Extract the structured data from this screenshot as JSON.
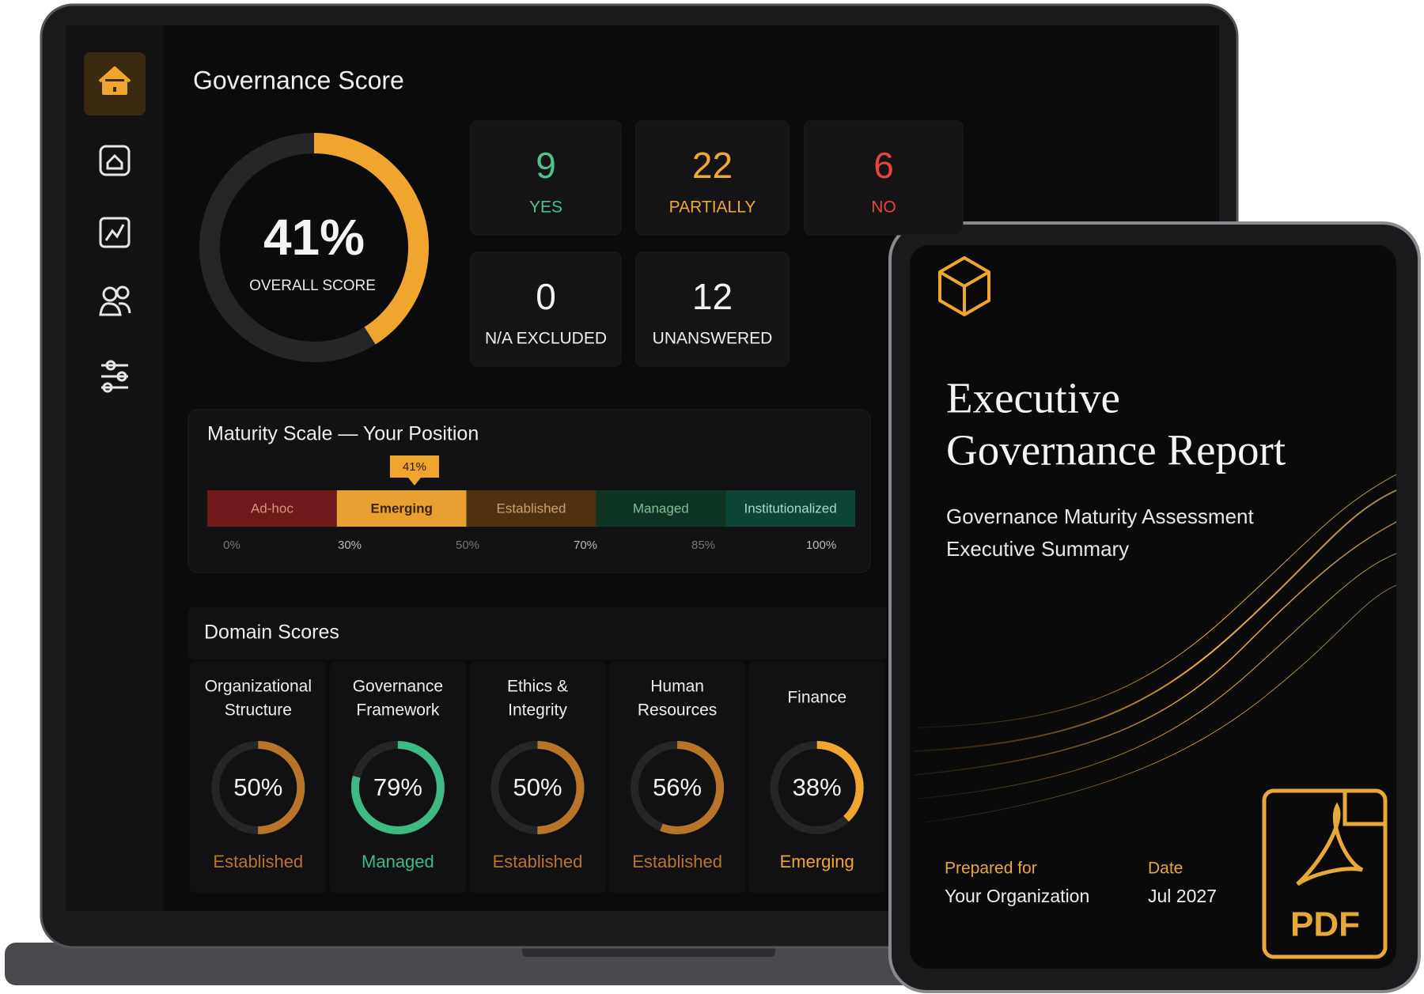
{
  "header": {
    "title": "Governance Score"
  },
  "overall": {
    "value": 41,
    "label": "41%",
    "caption": "OVERALL SCORE",
    "color": "#f0a62e"
  },
  "stats": [
    {
      "value": 9,
      "label": "YES",
      "color": "#4cc38a"
    },
    {
      "value": 22,
      "label": "PARTIALLY",
      "color": "#f0a830"
    },
    {
      "value": 6,
      "label": "NO",
      "color": "#e8453c"
    },
    {
      "value": 0,
      "label": "N/A EXCLUDED",
      "color": "#f2f2f2"
    },
    {
      "value": 12,
      "label": "UNANSWERED",
      "color": "#f2f2f2"
    }
  ],
  "maturity": {
    "title": "Maturity Scale — Your Position",
    "position": 41,
    "position_label": "41%",
    "segments": [
      {
        "name": "Ad-hoc",
        "color": "#6e1a1a",
        "text_color": "#d99080"
      },
      {
        "name": "Emerging",
        "color": "#e8a030",
        "text_color": "#3a2200"
      },
      {
        "name": "Established",
        "color": "#4e3210",
        "text_color": "#c8a070"
      },
      {
        "name": "Managed",
        "color": "#0f3424",
        "text_color": "#7fbf9a"
      },
      {
        "name": "Institutionalized",
        "color": "#0c4436",
        "text_color": "#a6dcc6"
      }
    ],
    "ticks": [
      {
        "value": 0,
        "label": "0%"
      },
      {
        "value": 30,
        "label": "30%"
      },
      {
        "value": 50,
        "label": "50%"
      },
      {
        "value": 70,
        "label": "70%"
      },
      {
        "value": 85,
        "label": "85%"
      },
      {
        "value": 100,
        "label": "100%"
      }
    ]
  },
  "domains": {
    "title": "Domain Scores",
    "items": [
      {
        "name_lines": [
          "Organizational",
          "Structure"
        ],
        "value": 50,
        "label": "50%",
        "level": "Established",
        "color": "#b8752a"
      },
      {
        "name_lines": [
          "Governance",
          "Framework"
        ],
        "value": 79,
        "label": "79%",
        "level": "Managed",
        "color": "#3fb983"
      },
      {
        "name_lines": [
          "Ethics &",
          "Integrity"
        ],
        "value": 50,
        "label": "50%",
        "level": "Established",
        "color": "#b8752a"
      },
      {
        "name_lines": [
          "Human",
          "Resources"
        ],
        "value": 56,
        "label": "56%",
        "level": "Established",
        "color": "#b8752a"
      },
      {
        "name_lines": [
          "Finance"
        ],
        "value": 38,
        "label": "38%",
        "level": "Emerging",
        "color": "#f0a62e"
      }
    ]
  },
  "report": {
    "title_lines": [
      "Executive",
      "Governance Report"
    ],
    "subtitle_lines": [
      "Governance Maturity Assessment",
      "Executive Summary"
    ],
    "prepared_label": "Prepared for",
    "prepared_value": "Your Organization",
    "date_label": "Date",
    "date_value": "Jul 2027",
    "badge": "PDF"
  }
}
